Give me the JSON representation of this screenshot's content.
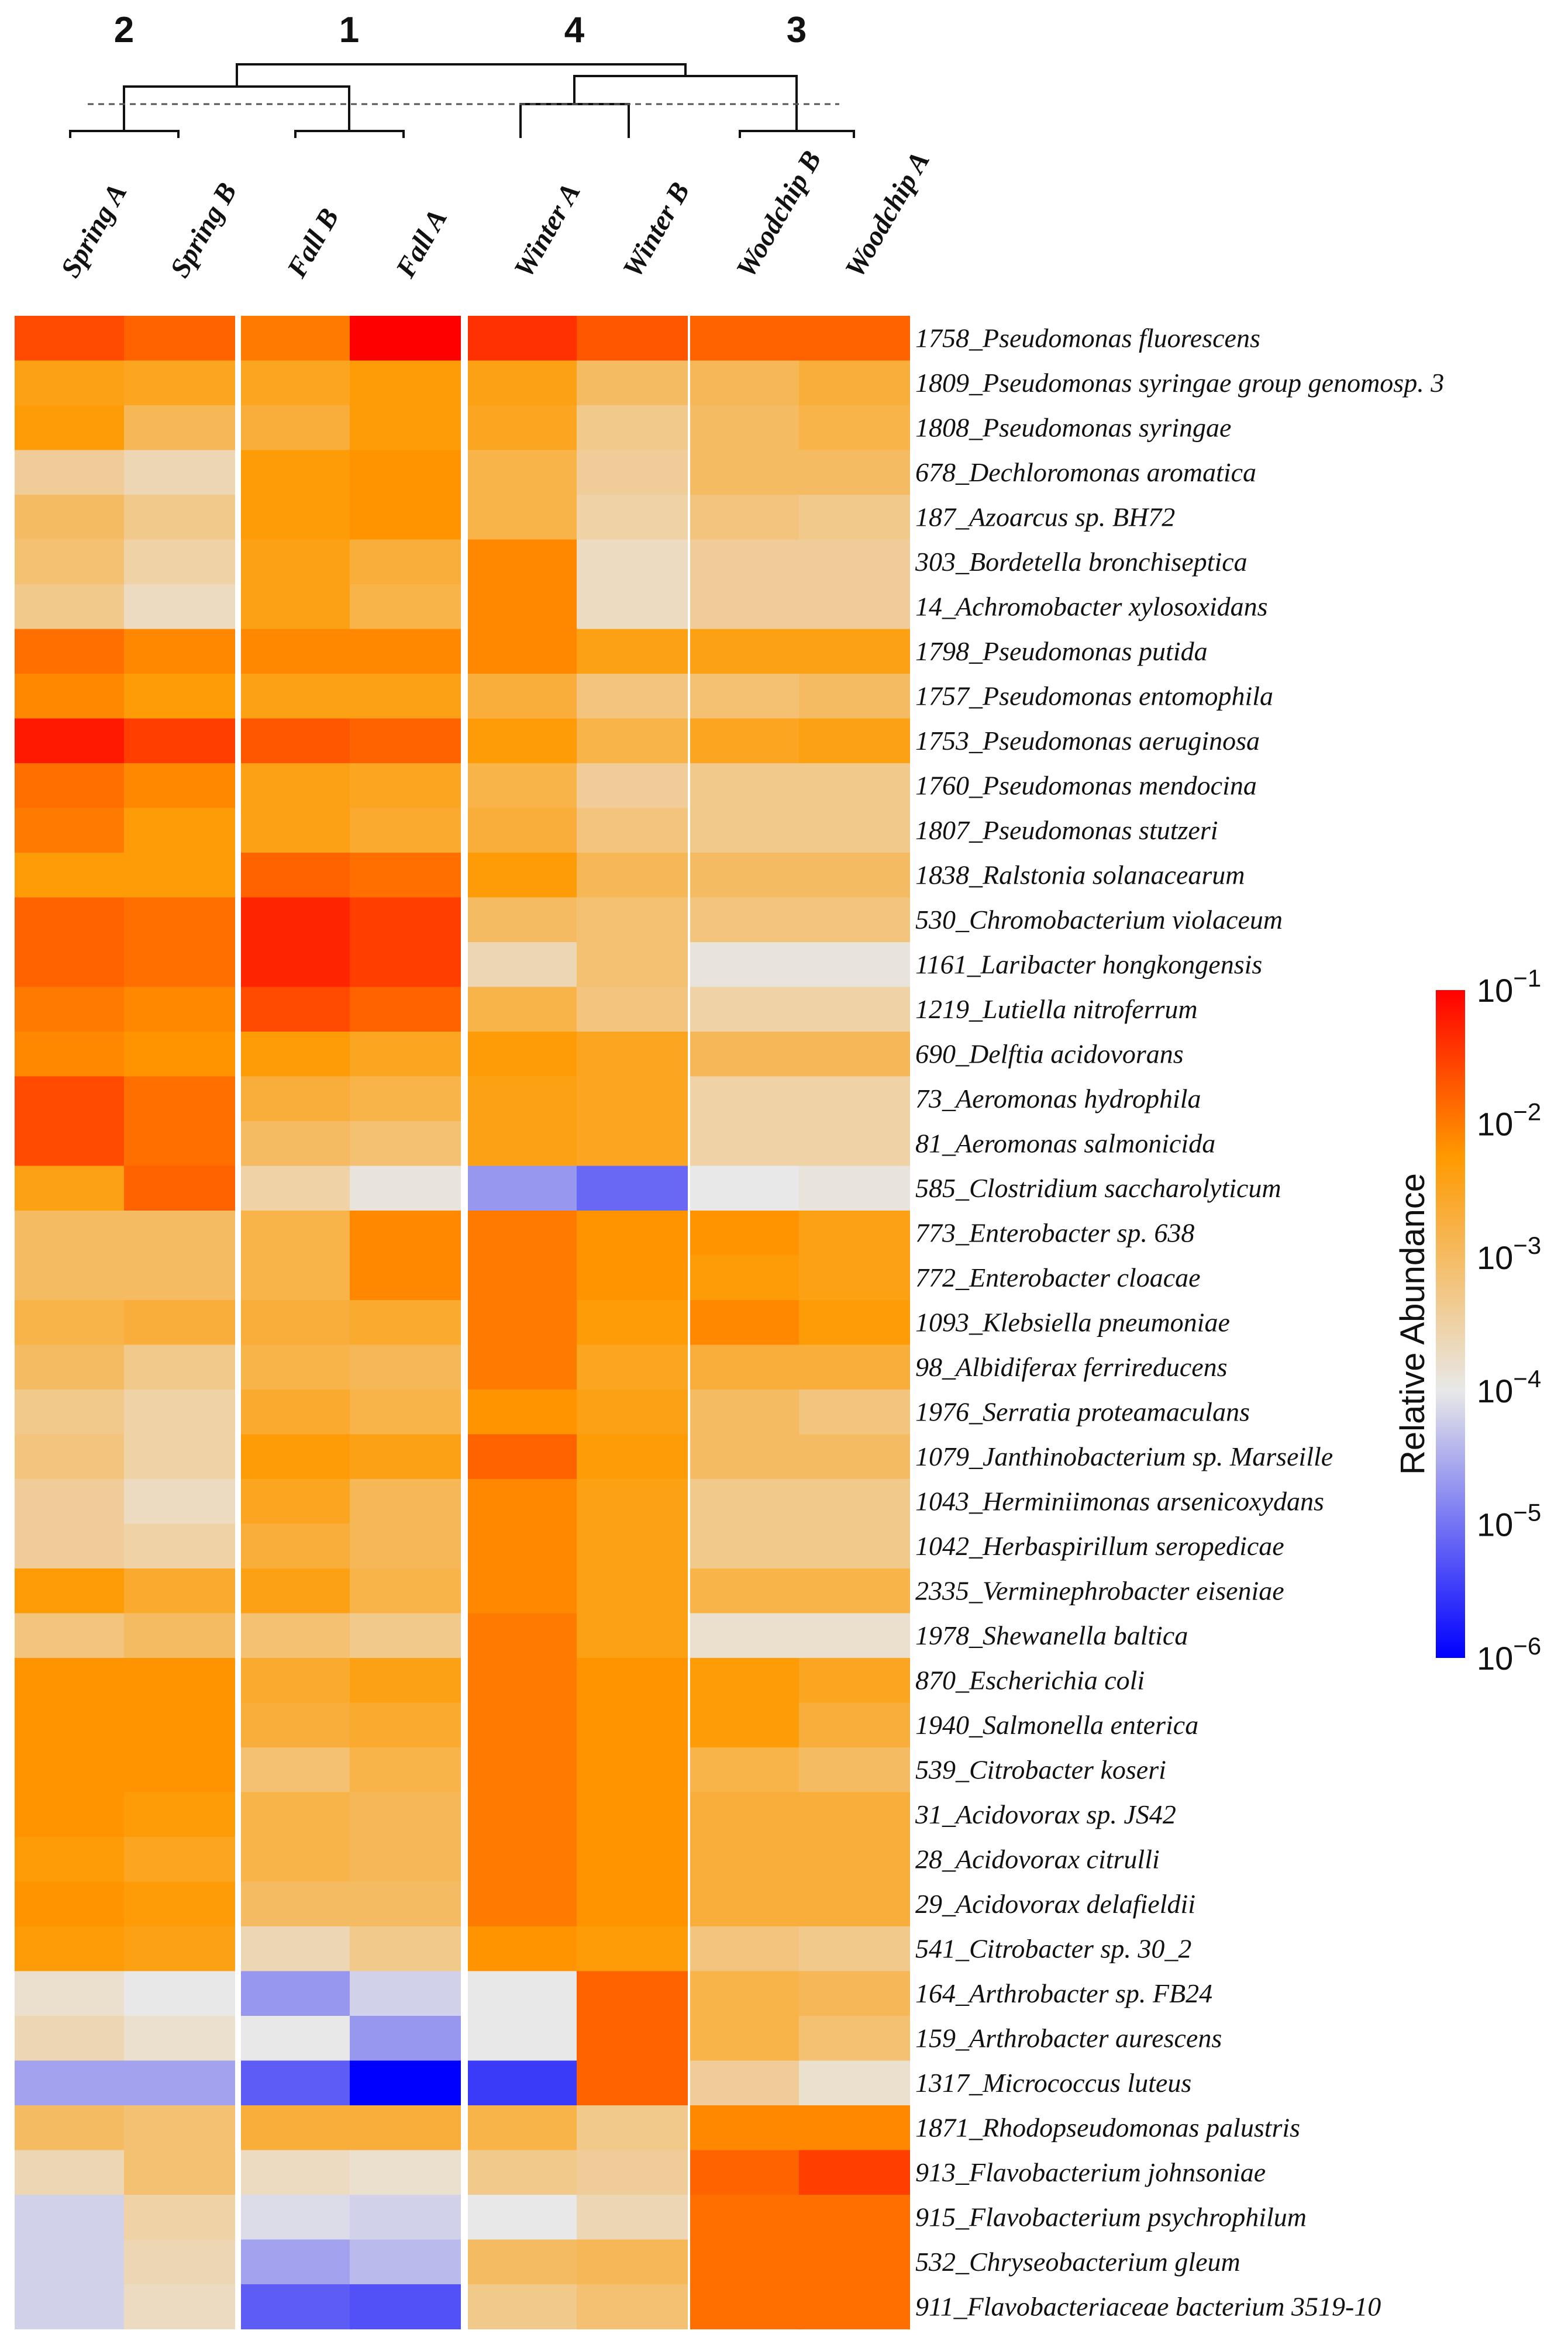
{
  "chart_data": {
    "type": "heatmap",
    "title": "",
    "colorbar": {
      "title": "Relative Abundance",
      "scale": "log10",
      "range_exponent": [
        -6,
        -1
      ],
      "ticks": [
        {
          "exp": -1,
          "base": "10",
          "sup": "−1"
        },
        {
          "exp": -2,
          "base": "10",
          "sup": "−2"
        },
        {
          "exp": -3,
          "base": "10",
          "sup": "−3"
        },
        {
          "exp": -4,
          "base": "10",
          "sup": "−4"
        },
        {
          "exp": -5,
          "base": "10",
          "sup": "−5"
        },
        {
          "exp": -6,
          "base": "10",
          "sup": "−6"
        }
      ],
      "colors": [
        "#0000ff",
        "#e8e8e8",
        "#ff9a00",
        "#ff0000"
      ]
    },
    "cluster_labels": [
      "2",
      "1",
      "4",
      "3"
    ],
    "columns": [
      "Spring A",
      "Spring B",
      "Fall B",
      "Fall A",
      "Winter A",
      "Winter B",
      "Woodchip B",
      "Woodchip A"
    ],
    "rows": [
      "1758_Pseudomonas fluorescens",
      "1809_Pseudomonas syringae group genomosp. 3",
      "1808_Pseudomonas syringae",
      "678_Dechloromonas aromatica",
      "187_Azoarcus sp. BH72",
      "303_Bordetella bronchiseptica",
      "14_Achromobacter xylosoxidans",
      "1798_Pseudomonas putida",
      "1757_Pseudomonas entomophila",
      "1753_Pseudomonas aeruginosa",
      "1760_Pseudomonas mendocina",
      "1807_Pseudomonas stutzeri",
      "1838_Ralstonia solanacearum",
      "530_Chromobacterium violaceum",
      "1161_Laribacter hongkongensis",
      "1219_Lutiella nitroferrum",
      "690_Delftia acidovorans",
      "73_Aeromonas hydrophila",
      "81_Aeromonas salmonicida",
      "585_Clostridium saccharolyticum",
      "773_Enterobacter sp. 638",
      "772_Enterobacter cloacae",
      "1093_Klebsiella pneumoniae",
      "98_Albidiferax ferrireducens",
      "1976_Serratia proteamaculans",
      "1079_Janthinobacterium sp. Marseille",
      "1043_Herminiimonas arsenicoxydans",
      "1042_Herbaspirillum seropedicae",
      "2335_Verminephrobacter eiseniae",
      "1978_Shewanella baltica",
      "870_Escherichia coli",
      "1940_Salmonella enterica",
      "539_Citrobacter koseri",
      "31_Acidovorax sp. JS42",
      "28_Acidovorax citrulli",
      "29_Acidovorax delafieldii",
      "541_Citrobacter sp. 30_2",
      "164_Arthrobacter sp. FB24",
      "159_Arthrobacter aurescens",
      "1317_Micrococcus luteus",
      "1871_Rhodopseudomonas palustris",
      "913_Flavobacterium johnsoniae",
      "915_Flavobacterium psychrophilum",
      "532_Chryseobacterium gleum",
      "911_Flavobacteriaceae bacterium 3519-10"
    ],
    "log10_values": [
      [
        -1.6,
        -1.8,
        -2.0,
        -1.0,
        -1.4,
        -1.7,
        -1.8,
        -1.8
      ],
      [
        -2.4,
        -2.5,
        -2.5,
        -2.3,
        -2.4,
        -3.0,
        -2.9,
        -2.7
      ],
      [
        -2.3,
        -2.9,
        -2.7,
        -2.3,
        -2.5,
        -3.3,
        -3.0,
        -2.8
      ],
      [
        -3.4,
        -3.6,
        -2.3,
        -2.2,
        -2.8,
        -3.4,
        -3.0,
        -3.0
      ],
      [
        -3.0,
        -3.3,
        -2.3,
        -2.2,
        -2.8,
        -3.5,
        -3.2,
        -3.3
      ],
      [
        -3.1,
        -3.5,
        -2.4,
        -2.7,
        -2.1,
        -3.7,
        -3.4,
        -3.4
      ],
      [
        -3.3,
        -3.7,
        -2.4,
        -2.8,
        -2.1,
        -3.7,
        -3.4,
        -3.4
      ],
      [
        -1.9,
        -2.1,
        -2.1,
        -2.1,
        -2.1,
        -2.4,
        -2.4,
        -2.4
      ],
      [
        -2.1,
        -2.3,
        -2.4,
        -2.4,
        -2.7,
        -3.2,
        -3.1,
        -3.0
      ],
      [
        -1.2,
        -1.5,
        -1.7,
        -1.8,
        -2.3,
        -2.8,
        -2.5,
        -2.4
      ],
      [
        -1.9,
        -2.1,
        -2.4,
        -2.5,
        -2.8,
        -3.4,
        -3.3,
        -3.3
      ],
      [
        -2.0,
        -2.3,
        -2.4,
        -2.6,
        -2.7,
        -3.2,
        -3.3,
        -3.3
      ],
      [
        -2.3,
        -2.3,
        -1.8,
        -1.9,
        -2.3,
        -2.9,
        -3.0,
        -3.0
      ],
      [
        -1.8,
        -1.9,
        -1.3,
        -1.5,
        -3.0,
        -3.1,
        -3.2,
        -3.2
      ],
      [
        -1.8,
        -1.9,
        -1.3,
        -1.5,
        -3.6,
        -3.1,
        -3.9,
        -3.9
      ],
      [
        -2.0,
        -2.1,
        -1.6,
        -1.8,
        -2.8,
        -3.2,
        -3.5,
        -3.5
      ],
      [
        -2.1,
        -2.2,
        -2.3,
        -2.5,
        -2.3,
        -2.5,
        -2.9,
        -2.9
      ],
      [
        -1.6,
        -1.9,
        -2.7,
        -2.8,
        -2.4,
        -2.5,
        -3.5,
        -3.5
      ],
      [
        -1.6,
        -1.9,
        -3.0,
        -3.1,
        -2.4,
        -2.5,
        -3.5,
        -3.5
      ],
      [
        -2.4,
        -1.8,
        -3.5,
        -3.9,
        -4.7,
        -5.1,
        -4.0,
        -3.9
      ],
      [
        -3.0,
        -3.0,
        -2.8,
        -2.1,
        -2.0,
        -2.2,
        -2.2,
        -2.4
      ],
      [
        -3.0,
        -3.0,
        -2.8,
        -2.1,
        -2.0,
        -2.2,
        -2.3,
        -2.4
      ],
      [
        -2.8,
        -2.7,
        -2.7,
        -2.6,
        -2.0,
        -2.3,
        -2.1,
        -2.3
      ],
      [
        -3.0,
        -3.3,
        -2.8,
        -2.9,
        -2.0,
        -2.5,
        -2.7,
        -2.7
      ],
      [
        -3.3,
        -3.5,
        -2.6,
        -2.8,
        -2.2,
        -2.4,
        -3.0,
        -3.2
      ],
      [
        -3.2,
        -3.5,
        -2.3,
        -2.4,
        -1.8,
        -2.3,
        -3.0,
        -3.0
      ],
      [
        -3.4,
        -3.7,
        -2.5,
        -2.9,
        -2.1,
        -2.4,
        -3.3,
        -3.3
      ],
      [
        -3.4,
        -3.5,
        -2.7,
        -2.9,
        -2.1,
        -2.4,
        -3.3,
        -3.3
      ],
      [
        -2.3,
        -2.6,
        -2.4,
        -2.8,
        -2.1,
        -2.4,
        -2.8,
        -2.8
      ],
      [
        -3.2,
        -3.0,
        -3.1,
        -3.3,
        -2.0,
        -2.4,
        -3.8,
        -3.8
      ],
      [
        -2.2,
        -2.2,
        -2.6,
        -2.4,
        -2.0,
        -2.2,
        -2.3,
        -2.5
      ],
      [
        -2.2,
        -2.2,
        -2.7,
        -2.6,
        -2.0,
        -2.2,
        -2.3,
        -2.7
      ],
      [
        -2.2,
        -2.2,
        -3.1,
        -2.8,
        -2.0,
        -2.2,
        -2.8,
        -3.0
      ],
      [
        -2.2,
        -2.3,
        -2.8,
        -2.9,
        -2.0,
        -2.2,
        -2.7,
        -2.7
      ],
      [
        -2.3,
        -2.5,
        -2.8,
        -2.9,
        -2.0,
        -2.2,
        -2.7,
        -2.7
      ],
      [
        -2.2,
        -2.3,
        -3.0,
        -3.0,
        -2.0,
        -2.2,
        -2.7,
        -2.7
      ],
      [
        -2.3,
        -2.4,
        -3.6,
        -3.3,
        -2.2,
        -2.3,
        -3.2,
        -3.3
      ],
      [
        -3.8,
        -4.0,
        -4.7,
        -4.2,
        -4.0,
        -1.8,
        -2.8,
        -2.9
      ],
      [
        -3.6,
        -3.8,
        -4.0,
        -4.7,
        -4.0,
        -1.8,
        -2.8,
        -3.1
      ],
      [
        -4.6,
        -4.6,
        -5.2,
        -6.0,
        -5.5,
        -1.8,
        -3.4,
        -3.8
      ],
      [
        -3.0,
        -3.1,
        -2.7,
        -2.7,
        -2.8,
        -3.3,
        -2.1,
        -2.1
      ],
      [
        -3.6,
        -3.1,
        -3.7,
        -3.8,
        -3.3,
        -3.4,
        -1.8,
        -1.5
      ],
      [
        -4.2,
        -3.5,
        -4.1,
        -4.2,
        -4.0,
        -3.6,
        -1.9,
        -1.9
      ],
      [
        -4.2,
        -3.6,
        -4.6,
        -4.4,
        -3.0,
        -2.9,
        -1.9,
        -1.9
      ],
      [
        -4.2,
        -3.7,
        -5.2,
        -5.3,
        -3.3,
        -3.1,
        -1.9,
        -1.9
      ]
    ]
  }
}
